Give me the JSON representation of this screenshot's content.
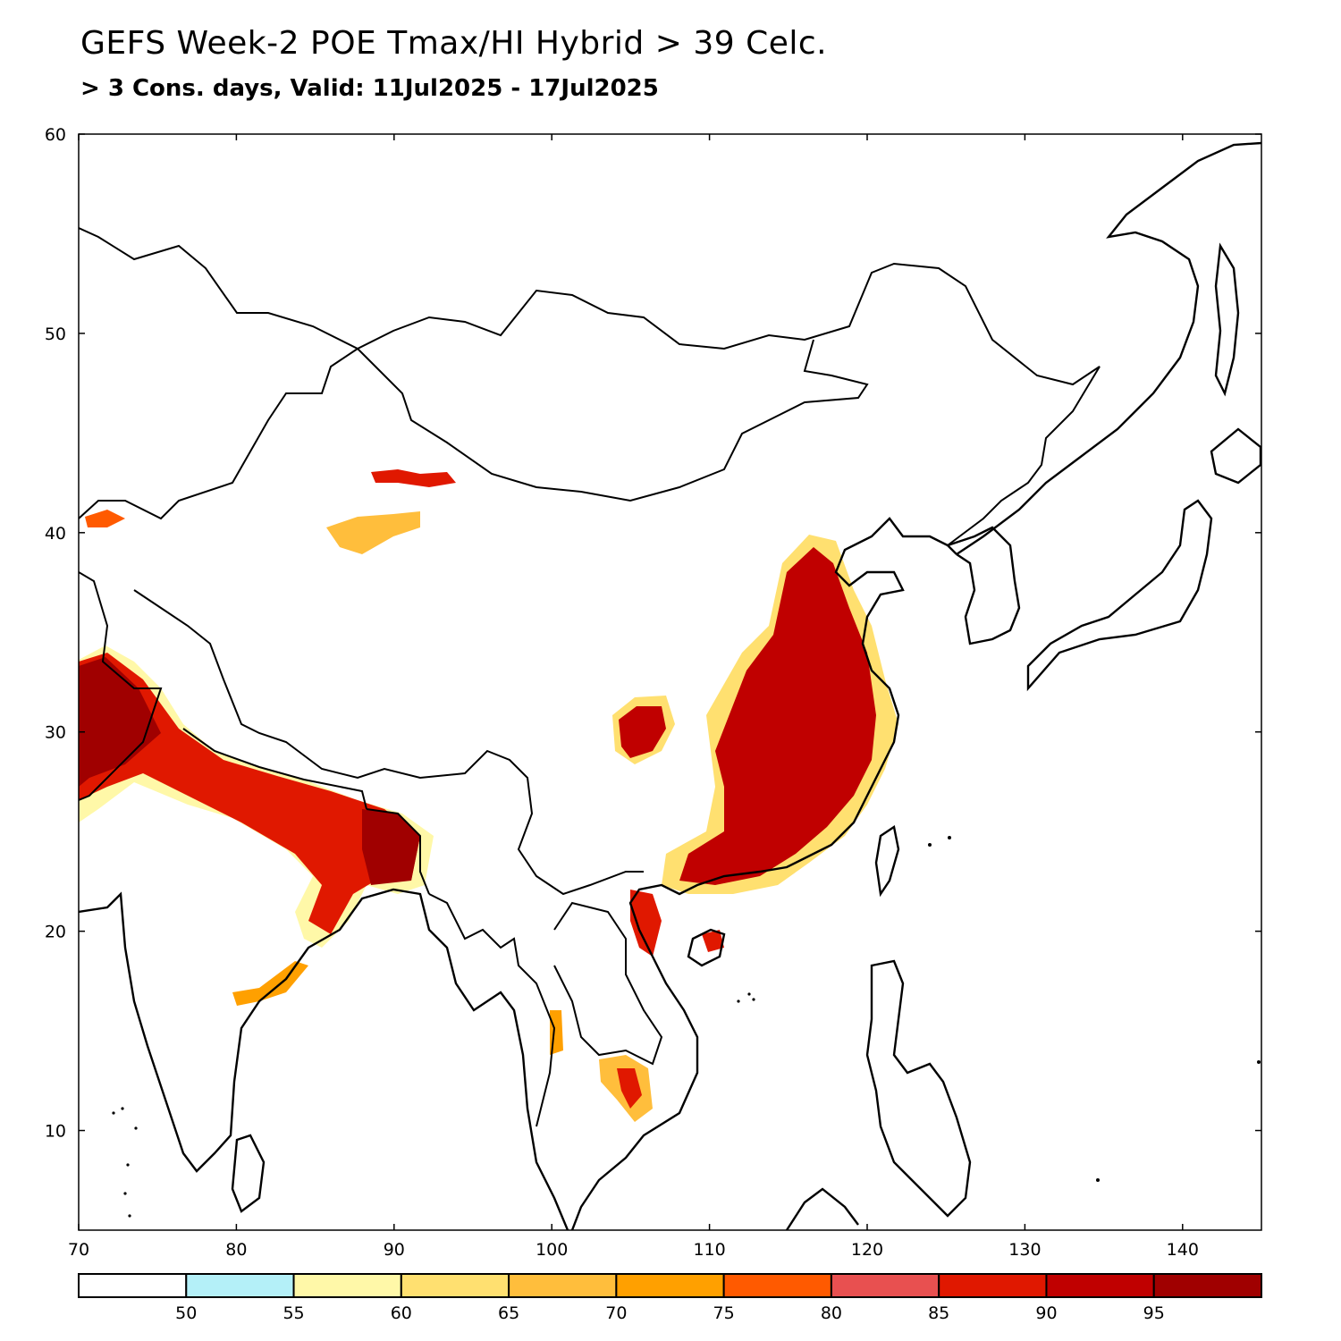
{
  "title": "GEFS Week-2 POE Tmax/HI Hybrid > 39 Celc.",
  "subtitle": "> 3 Cons. days, Valid: 11Jul2025 - 17Jul2025",
  "map": {
    "lon_range": [
      70,
      145
    ],
    "lat_range": [
      5,
      60
    ],
    "lon_ticks": [
      "70",
      "80",
      "90",
      "100",
      "110",
      "120",
      "130",
      "140"
    ],
    "lat_ticks": [
      "10",
      "20",
      "30",
      "40",
      "50",
      "60"
    ]
  },
  "colorbar": {
    "labels": [
      "50",
      "55",
      "60",
      "65",
      "70",
      "75",
      "80",
      "85",
      "90",
      "95"
    ],
    "colors": [
      "#ffffff",
      "#b4f0f8",
      "#fff8a8",
      "#ffe070",
      "#ffbe3c",
      "#ffa000",
      "#ff5a00",
      "#e85050",
      "#e01800",
      "#c00000",
      "#a00000"
    ]
  }
}
